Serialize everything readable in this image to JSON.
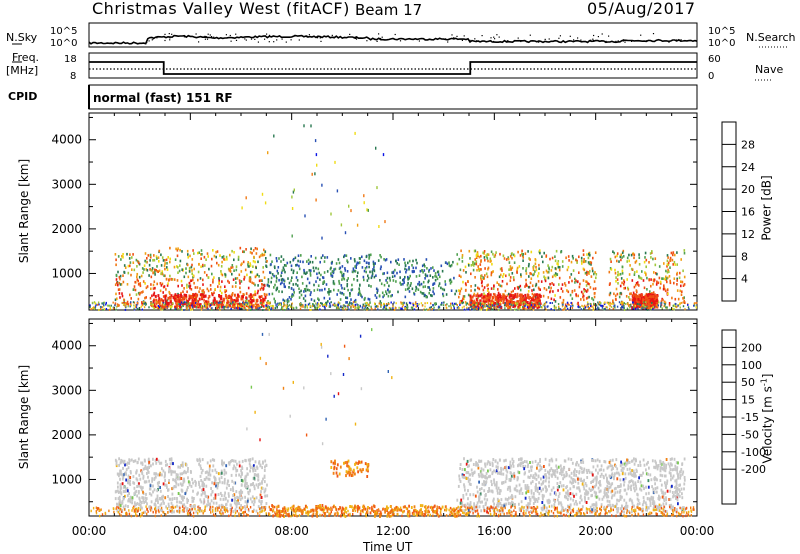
{
  "header": {
    "station_title": "Christmas Valley West (fitACF)",
    "beam": "Beam 17",
    "date": "05/Aug/2017"
  },
  "strip_labels": {
    "n_sky": "N.Sky",
    "n_search": "N.Search",
    "freq": "Freq.",
    "freq_unit": "[MHz]",
    "nave": "Nave",
    "cpid": "CPID",
    "cpid_value": "normal (fast) 151 RF",
    "sky_ticks": [
      "10^5",
      "10^0"
    ],
    "search_ticks": [
      "10^5",
      "10^0"
    ],
    "freq_ticks": [
      "18",
      "8"
    ],
    "nave_ticks": [
      "60",
      "0"
    ]
  },
  "chart_data": [
    {
      "type": "heatmap",
      "title": "",
      "ylabel": "Slant Range [km]",
      "xlabel": "",
      "ylim": [
        180,
        4600
      ],
      "yticks": [
        1000,
        2000,
        3000,
        4000
      ],
      "xlim_hours": [
        0,
        24
      ],
      "colorbar": {
        "label": "Power [dB]",
        "ticks": [
          "4",
          "8",
          "12",
          "16",
          "20",
          "24",
          "28"
        ],
        "range": [
          0,
          30
        ],
        "colors": [
          "#0a14e6",
          "#2850b4",
          "#287850",
          "#50a050",
          "#a0c83c",
          "#f0dc14",
          "#f0a014",
          "#f07814",
          "#f05014",
          "#e61414"
        ]
      },
      "scatter_regions": [
        {
          "t0": 1.0,
          "t1": 2.7,
          "r0": 300,
          "r1": 1500,
          "level": "mixed"
        },
        {
          "t0": 2.7,
          "t1": 7.0,
          "r0": 250,
          "r1": 1600,
          "level": "mixed"
        },
        {
          "t0": 7.0,
          "t1": 11.5,
          "r0": 250,
          "r1": 1450,
          "level": "weak"
        },
        {
          "t0": 11.5,
          "t1": 14.5,
          "r0": 500,
          "r1": 1350,
          "level": "weak"
        },
        {
          "t0": 14.5,
          "t1": 20.0,
          "r0": 300,
          "r1": 1550,
          "level": "mixed"
        },
        {
          "t0": 20.5,
          "t1": 23.5,
          "r0": 300,
          "r1": 1550,
          "level": "mixed"
        }
      ]
    },
    {
      "type": "heatmap",
      "title": "",
      "ylabel": "Slant Range [km]",
      "xlabel": "Time UT",
      "ylim": [
        180,
        4600
      ],
      "yticks": [
        1000,
        2000,
        3000,
        4000
      ],
      "xticks": [
        "00:00",
        "04:00",
        "08:00",
        "12:00",
        "16:00",
        "20:00",
        "00:00"
      ],
      "colorbar": {
        "label": "Velocity [m s^-1]",
        "ticks": [
          "200",
          "100",
          "50",
          "15",
          "-15",
          "-50",
          "-100",
          "-200"
        ],
        "colors": [
          "#1428c8",
          "#3264b4",
          "#3c8c64",
          "#78c850",
          "#c8c8c8",
          "#c8c8c8",
          "#f0b414",
          "#f08214",
          "#f05a14",
          "#e61414"
        ]
      },
      "scatter_regions": [
        {
          "t0": 1.0,
          "t1": 7.0,
          "r0": 300,
          "r1": 1500,
          "level": "ground"
        },
        {
          "t0": 9.5,
          "t1": 11.0,
          "r0": 1100,
          "r1": 1450,
          "level": "negative"
        },
        {
          "t0": 7.0,
          "t1": 15.0,
          "r0": 200,
          "r1": 450,
          "level": "negative"
        },
        {
          "t0": 14.5,
          "t1": 23.5,
          "r0": 300,
          "r1": 1500,
          "level": "ground"
        }
      ]
    }
  ]
}
